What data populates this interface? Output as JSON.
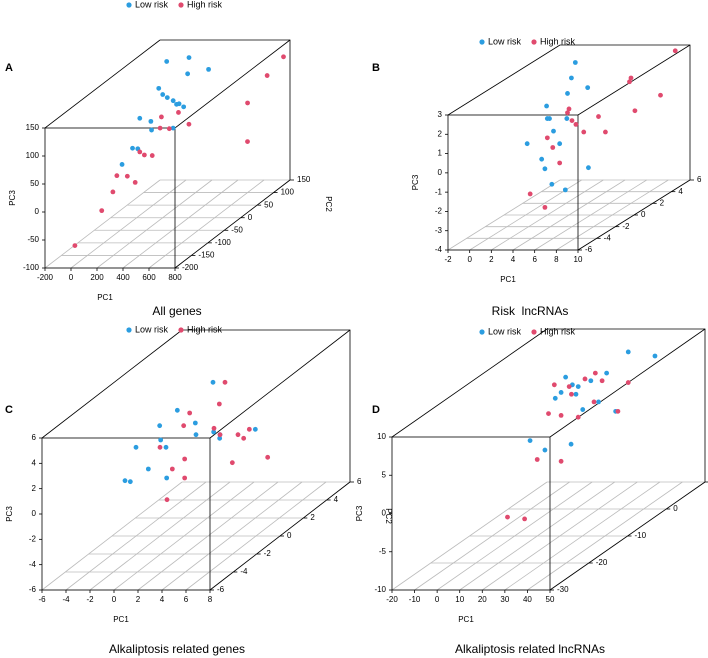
{
  "chart_data": [
    {
      "type": "scatter3d",
      "label": "A",
      "title": "All genes",
      "xlabel": "PC1",
      "ylabel": "PC2",
      "zlabel": "PC3",
      "xlim": [
        -200,
        800
      ],
      "xticks": [
        -200,
        0,
        200,
        400,
        600,
        800
      ],
      "ylim": [
        -200,
        150
      ],
      "yticks": [
        -200,
        -150,
        -100,
        -50,
        0,
        50,
        100,
        150
      ],
      "zlim": [
        -100,
        150
      ],
      "zticks": [
        -100,
        -50,
        0,
        50,
        100,
        150
      ],
      "series": [
        {
          "name": "Low risk",
          "color": "#2b9de0",
          "x": [
            150,
            200,
            180,
            220,
            250,
            170,
            210,
            240,
            190,
            230,
            160,
            260,
            200,
            280,
            140,
            300,
            210,
            180
          ],
          "y": [
            -50,
            0,
            50,
            -20,
            30,
            -80,
            10,
            60,
            -30,
            20,
            -60,
            40,
            80,
            0,
            -100,
            100,
            -40,
            20
          ],
          "z": [
            100,
            120,
            80,
            140,
            90,
            60,
            110,
            130,
            70,
            100,
            50,
            80,
            150,
            60,
            40,
            120,
            90,
            170
          ]
        },
        {
          "name": "High risk",
          "color": "#e04a6e",
          "x": [
            100,
            150,
            130,
            180,
            120,
            200,
            160,
            140,
            220,
            110,
            170,
            250,
            600,
            700,
            750,
            650,
            30,
            190
          ],
          "y": [
            -100,
            -50,
            -80,
            0,
            -120,
            20,
            -40,
            -60,
            40,
            -150,
            -20,
            60,
            100,
            120,
            150,
            80,
            -200,
            0
          ],
          "z": [
            20,
            40,
            10,
            60,
            0,
            50,
            30,
            -10,
            70,
            -20,
            20,
            40,
            60,
            100,
            120,
            0,
            -60,
            80
          ]
        }
      ]
    },
    {
      "type": "scatter3d",
      "label": "B",
      "title": "Risk  lncRNAs",
      "xlabel": "PC1",
      "ylabel": "PC2",
      "zlabel": "PC3",
      "xlim": [
        -2,
        10
      ],
      "xticks": [
        -2,
        0,
        2,
        4,
        6,
        8,
        10
      ],
      "ylim": [
        -6,
        6
      ],
      "yticks": [
        -6,
        -4,
        -2,
        0,
        2,
        4,
        6
      ],
      "zlim": [
        -4,
        3
      ],
      "zticks": [
        -4,
        -3,
        -2,
        -1,
        0,
        1,
        2,
        3
      ],
      "series": [
        {
          "name": "Low risk",
          "color": "#2b9de0",
          "x": [
            2,
            3,
            4,
            2.5,
            3.5,
            1.5,
            4.5,
            3,
            2,
            5,
            3.8,
            2.8,
            1,
            4,
            3.2,
            2.2
          ],
          "y": [
            0,
            1,
            -1,
            2,
            -2,
            0.5,
            1.5,
            -0.5,
            3,
            -3,
            0,
            1,
            -1,
            2,
            -2,
            0
          ],
          "z": [
            1,
            2,
            0,
            2.5,
            -1,
            1.5,
            -2,
            0.5,
            3,
            -1.5,
            1,
            -3,
            0,
            2,
            -0.5,
            1
          ]
        },
        {
          "name": "High risk",
          "color": "#e04a6e",
          "x": [
            2,
            3,
            4,
            5,
            6,
            7,
            3,
            2.5,
            4.5,
            5.5,
            8,
            9,
            3.5,
            6.5,
            4,
            7.5,
            9.5
          ],
          "y": [
            0,
            1,
            -1,
            2,
            -2,
            3,
            -3,
            0,
            1,
            -1,
            2,
            4,
            -2,
            1,
            0,
            3,
            5
          ],
          "z": [
            0,
            1,
            -1,
            0.5,
            1.5,
            2,
            -2,
            -0.5,
            0,
            1,
            2.5,
            1,
            -3,
            0,
            1.5,
            0.5,
            3
          ]
        }
      ]
    },
    {
      "type": "scatter3d",
      "label": "C",
      "title": "Alkaliptosis related genes",
      "xlabel": "PC1",
      "ylabel": "PC2",
      "zlabel": "PC3",
      "xlim": [
        -6,
        8
      ],
      "xticks": [
        -6,
        -4,
        -2,
        0,
        2,
        4,
        6,
        8
      ],
      "ylim": [
        -6,
        6
      ],
      "yticks": [
        -6,
        -4,
        -2,
        0,
        2,
        4,
        6
      ],
      "zlim": [
        -6,
        6
      ],
      "zticks": [
        -6,
        -4,
        -2,
        0,
        2,
        4,
        6
      ],
      "series": [
        {
          "name": "Low risk",
          "color": "#2b9de0",
          "x": [
            -4,
            -3,
            -2,
            -1,
            0,
            1,
            2,
            -3.5,
            -2.5,
            -1.5,
            0.5,
            1.5,
            3,
            -0.5,
            -2,
            4
          ],
          "y": [
            0,
            1,
            -1,
            2,
            -2,
            0,
            1,
            -1,
            2,
            0,
            -2,
            1,
            0,
            3,
            -3,
            2
          ],
          "z": [
            1,
            2,
            0,
            1.5,
            3,
            2,
            1,
            -1,
            2.5,
            1,
            0,
            1.5,
            2,
            4,
            0.5,
            1
          ]
        },
        {
          "name": "High risk",
          "color": "#e04a6e",
          "x": [
            -2,
            -1,
            0,
            1,
            2,
            3,
            4,
            5,
            0.5,
            1.5,
            2.5,
            3.5,
            -0.5,
            2,
            4.5,
            6
          ],
          "y": [
            0,
            1,
            -1,
            2,
            -2,
            0,
            1,
            -1,
            3,
            -3,
            0,
            2,
            1,
            -2,
            0,
            1
          ],
          "z": [
            1,
            2,
            0,
            3,
            1.5,
            2,
            1,
            0.5,
            4,
            -1,
            2.5,
            1,
            3,
            0,
            2,
            -0.5
          ]
        }
      ]
    },
    {
      "type": "scatter3d",
      "label": "D",
      "title": "Alkaliptosis related lncRNAs",
      "xlabel": "PC1",
      "ylabel": "PC2",
      "zlabel": "PC3",
      "xlim": [
        -20,
        50
      ],
      "xticks": [
        -20,
        -10,
        0,
        10,
        20,
        30,
        40,
        50
      ],
      "ylim": [
        -30,
        10
      ],
      "yticks": [
        -30,
        -20,
        -10,
        0,
        10
      ],
      "zlim": [
        -10,
        10
      ],
      "zticks": [
        -10,
        -5,
        0,
        5,
        10
      ],
      "series": [
        {
          "name": "Low risk",
          "color": "#2b9de0",
          "x": [
            10,
            12,
            15,
            18,
            20,
            22,
            8,
            14,
            16,
            25,
            11,
            19,
            24,
            13,
            17,
            45
          ],
          "y": [
            0,
            -5,
            5,
            -10,
            0,
            -15,
            5,
            -5,
            10,
            -10,
            0,
            5,
            -20,
            0,
            -5,
            0
          ],
          "z": [
            5,
            7,
            6,
            8,
            4,
            3,
            5,
            9,
            7,
            2,
            6,
            1,
            6,
            3,
            8,
            10
          ]
        },
        {
          "name": "High risk",
          "color": "#e04a6e",
          "x": [
            8,
            10,
            12,
            14,
            16,
            9,
            11,
            13,
            15,
            18,
            20,
            7,
            12,
            10,
            14,
            13
          ],
          "y": [
            0,
            5,
            -5,
            0,
            10,
            -5,
            0,
            5,
            -10,
            0,
            5,
            0,
            -5,
            -10,
            -20,
            -15
          ],
          "z": [
            5,
            6,
            4,
            7,
            3,
            8,
            2,
            5,
            6,
            4,
            1,
            6,
            -2,
            0,
            -4,
            -6
          ]
        }
      ]
    }
  ]
}
